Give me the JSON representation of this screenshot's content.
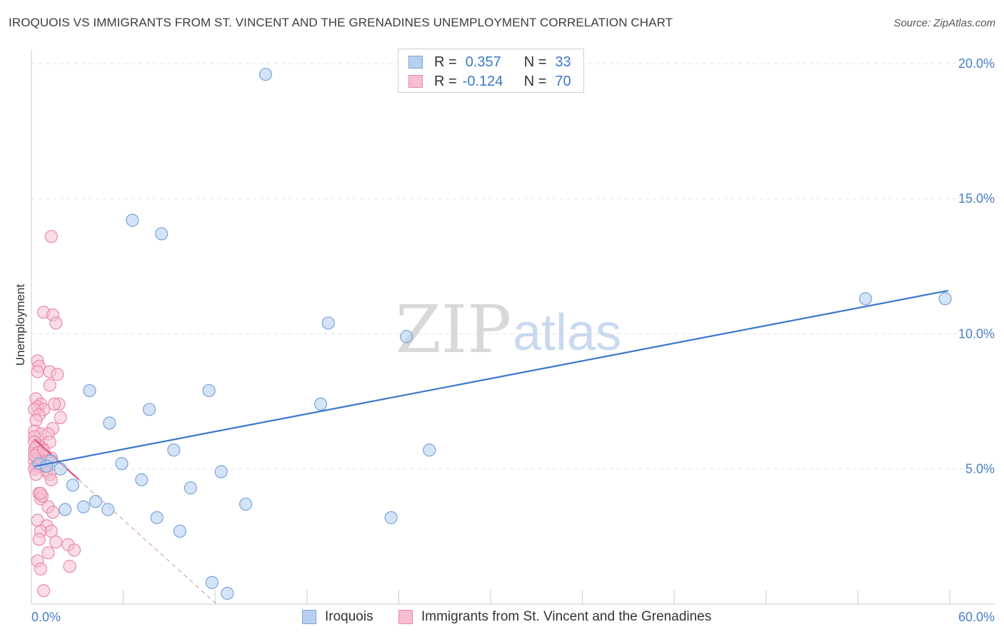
{
  "title": "IROQUOIS VS IMMIGRANTS FROM ST. VINCENT AND THE GRENADINES UNEMPLOYMENT CORRELATION CHART",
  "source": "Source: ZipAtlas.com",
  "watermark": {
    "zip": "ZIP",
    "atlas": "atlas"
  },
  "legend_top": {
    "rows": [
      {
        "r_label": "R =",
        "r_value": "0.357",
        "n_label": "N =",
        "n_value": "33"
      },
      {
        "r_label": "R =",
        "r_value": "-0.124",
        "n_label": "N =",
        "n_value": "70"
      }
    ]
  },
  "legend_bottom": {
    "series1": "Iroquois",
    "series2": "Immigrants from St. Vincent and the Grenadines"
  },
  "colors": {
    "blue_fill": "#b8d0f0",
    "blue_stroke": "#7aa3d8",
    "blue_line": "#3a78cc",
    "pink_fill": "#f6bfd0",
    "pink_stroke": "#e889a8",
    "pink_line": "#e0527f",
    "grid": "#e4e4e4",
    "tick_text": "#4a7fc7"
  },
  "chart_data": {
    "type": "scatter",
    "title": "IROQUOIS VS IMMIGRANTS FROM ST. VINCENT AND THE GRENADINES UNEMPLOYMENT CORRELATION CHART",
    "xlabel": "",
    "ylabel": "Unemployment",
    "xlim": [
      0,
      60
    ],
    "ylim": [
      0,
      20.5
    ],
    "x_tick_labels": [
      "0.0%",
      "60.0%"
    ],
    "y_ticks": [
      5,
      10,
      15,
      20
    ],
    "y_tick_labels": [
      "5.0%",
      "10.0%",
      "15.0%",
      "20.0%"
    ],
    "series": [
      {
        "name": "Iroquois",
        "r": 0.357,
        "n": 33,
        "points": [
          [
            15.3,
            19.6
          ],
          [
            6.6,
            14.2
          ],
          [
            8.5,
            13.7
          ],
          [
            19.4,
            10.4
          ],
          [
            24.5,
            9.9
          ],
          [
            3.8,
            7.9
          ],
          [
            11.6,
            7.9
          ],
          [
            18.9,
            7.4
          ],
          [
            7.7,
            7.2
          ],
          [
            5.1,
            6.7
          ],
          [
            9.3,
            5.7
          ],
          [
            26.0,
            5.7
          ],
          [
            5.9,
            5.2
          ],
          [
            1.9,
            5.0
          ],
          [
            1.3,
            5.3
          ],
          [
            12.4,
            4.9
          ],
          [
            7.2,
            4.6
          ],
          [
            2.7,
            4.4
          ],
          [
            10.4,
            4.3
          ],
          [
            4.2,
            3.8
          ],
          [
            3.4,
            3.6
          ],
          [
            2.2,
            3.5
          ],
          [
            14.0,
            3.7
          ],
          [
            5.0,
            3.5
          ],
          [
            8.2,
            3.2
          ],
          [
            23.5,
            3.2
          ],
          [
            9.7,
            2.7
          ],
          [
            11.8,
            0.8
          ],
          [
            12.8,
            0.4
          ],
          [
            54.5,
            11.3
          ],
          [
            59.7,
            11.3
          ],
          [
            0.5,
            5.2
          ],
          [
            1.0,
            5.1
          ]
        ],
        "trend": {
          "x": [
            0.2,
            59.9
          ],
          "y": [
            5.1,
            11.6
          ]
        }
      },
      {
        "name": "Immigrants from St. Vincent and the Grenadines",
        "r": -0.124,
        "n": 70,
        "points": [
          [
            1.3,
            13.6
          ],
          [
            0.8,
            10.8
          ],
          [
            1.4,
            10.7
          ],
          [
            1.6,
            10.4
          ],
          [
            0.4,
            9.0
          ],
          [
            0.5,
            8.8
          ],
          [
            1.2,
            8.6
          ],
          [
            0.4,
            8.6
          ],
          [
            1.7,
            8.5
          ],
          [
            1.2,
            8.1
          ],
          [
            0.3,
            7.6
          ],
          [
            0.6,
            7.4
          ],
          [
            0.4,
            7.3
          ],
          [
            1.8,
            7.4
          ],
          [
            0.8,
            7.2
          ],
          [
            0.2,
            7.2
          ],
          [
            1.5,
            7.4
          ],
          [
            0.5,
            7.0
          ],
          [
            0.3,
            6.8
          ],
          [
            1.9,
            6.9
          ],
          [
            0.2,
            6.4
          ],
          [
            1.4,
            6.5
          ],
          [
            0.6,
            6.3
          ],
          [
            1.1,
            6.3
          ],
          [
            0.2,
            6.2
          ],
          [
            0.4,
            5.9
          ],
          [
            0.7,
            5.8
          ],
          [
            1.2,
            6.0
          ],
          [
            0.2,
            5.7
          ],
          [
            0.5,
            5.6
          ],
          [
            0.3,
            5.5
          ],
          [
            0.9,
            5.5
          ],
          [
            0.4,
            5.4
          ],
          [
            0.2,
            5.3
          ],
          [
            0.6,
            5.3
          ],
          [
            1.3,
            5.4
          ],
          [
            0.3,
            5.1
          ],
          [
            0.7,
            5.2
          ],
          [
            0.5,
            5.1
          ],
          [
            0.2,
            5.0
          ],
          [
            1.0,
            4.9
          ],
          [
            0.3,
            4.8
          ],
          [
            1.2,
            4.8
          ],
          [
            1.3,
            4.6
          ],
          [
            0.5,
            4.1
          ],
          [
            0.6,
            3.9
          ],
          [
            0.7,
            4.0
          ],
          [
            1.1,
            3.6
          ],
          [
            1.4,
            3.4
          ],
          [
            0.4,
            3.1
          ],
          [
            1.0,
            2.9
          ],
          [
            0.6,
            2.7
          ],
          [
            1.3,
            2.7
          ],
          [
            0.5,
            2.4
          ],
          [
            1.6,
            2.3
          ],
          [
            2.4,
            2.2
          ],
          [
            2.8,
            2.0
          ],
          [
            1.1,
            1.9
          ],
          [
            0.4,
            1.6
          ],
          [
            0.6,
            1.3
          ],
          [
            2.5,
            1.4
          ],
          [
            0.8,
            0.5
          ],
          [
            0.2,
            6.0
          ],
          [
            0.3,
            5.8
          ],
          [
            0.9,
            5.1
          ],
          [
            0.4,
            5.6
          ],
          [
            0.6,
            4.1
          ],
          [
            1.0,
            5.3
          ],
          [
            0.2,
            5.5
          ],
          [
            0.8,
            5.7
          ]
        ],
        "trend": {
          "x": [
            0.2,
            3.1
          ],
          "y": [
            6.1,
            4.6
          ]
        },
        "trend_extended": {
          "x": [
            3.1,
            12.1
          ],
          "y": [
            4.6,
            0.0
          ]
        }
      }
    ]
  }
}
